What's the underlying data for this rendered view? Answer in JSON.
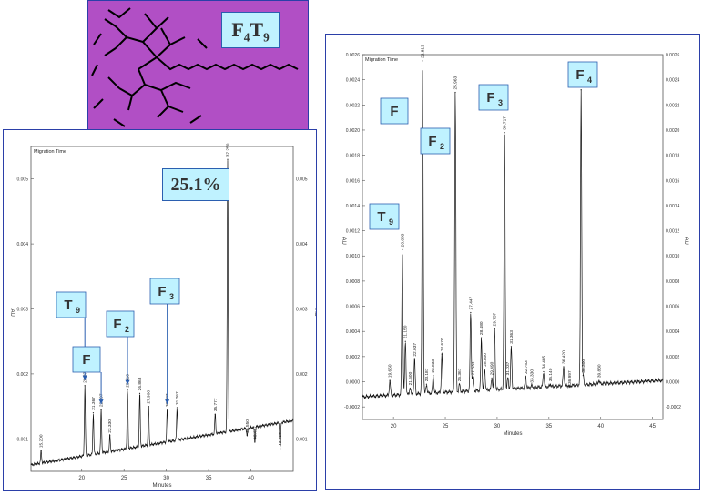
{
  "molecule": {
    "formula_main": "F",
    "formula_sub1": "4",
    "formula_mid": "T",
    "formula_sub2": "9"
  },
  "left_chart_tag": "25.1%",
  "colors": {
    "accent_box": "#bff2ff",
    "border": "#2b3fa8",
    "molecule_bg": "#b14fc5",
    "trace": "#111111"
  },
  "chart_data": [
    {
      "type": "line",
      "title": "Migration Time",
      "xlabel": "Minutes",
      "ylabel": "AU",
      "xlim": [
        14,
        45
      ],
      "ylim": [
        0.0005,
        0.0055
      ],
      "x_ticks": [
        "20",
        "25",
        "30",
        "35",
        "40"
      ],
      "y_ticks_left": [
        "0.001",
        "0.002",
        "0.003",
        "0.004",
        "0.005"
      ],
      "y_ticks_right": [
        "0.001",
        "0.002",
        "0.003",
        "0.004",
        "0.005"
      ],
      "peaks": [
        {
          "x": 15.2,
          "y": 0.00082,
          "label": "15.200"
        },
        {
          "x": 20.37,
          "y": 0.00182,
          "label": "20.370"
        },
        {
          "x": 21.367,
          "y": 0.0014,
          "label": "21.367"
        },
        {
          "x": 22.297,
          "y": 0.00145,
          "label": "22.297"
        },
        {
          "x": 23.33,
          "y": 0.00105,
          "label": "23.330"
        },
        {
          "x": 25.413,
          "y": 0.00175,
          "label": "25.413"
        },
        {
          "x": 26.863,
          "y": 0.0017,
          "label": "26.863"
        },
        {
          "x": 27.9,
          "y": 0.0015,
          "label": "27.900"
        },
        {
          "x": 30.107,
          "y": 0.00145,
          "label": "30.107"
        },
        {
          "x": 31.267,
          "y": 0.00148,
          "label": "31.267"
        },
        {
          "x": 35.777,
          "y": 0.00138,
          "label": "35.777"
        },
        {
          "x": 37.25,
          "y": 0.0053,
          "label": "37.250"
        },
        {
          "x": 39.55,
          "y": 0.00105,
          "label": "39.550"
        },
        {
          "x": 40.467,
          "y": 0.00095,
          "label": "40.467"
        },
        {
          "x": 43.457,
          "y": 0.00085,
          "label": "43.457"
        }
      ],
      "annotations": [
        {
          "main": "T",
          "sub": "9",
          "x": 20.37
        },
        {
          "main": "F",
          "sub": "",
          "x": 22.297
        },
        {
          "main": "F",
          "sub": "2",
          "x": 25.413
        },
        {
          "main": "F",
          "sub": "3",
          "x": 30.107
        }
      ]
    },
    {
      "type": "line",
      "title": "Migration Time",
      "xlabel": "Minutes",
      "ylabel": "AU",
      "xlim": [
        17,
        46
      ],
      "ylim": [
        -0.0003,
        0.0026
      ],
      "x_ticks": [
        "20",
        "25",
        "30",
        "35",
        "40",
        "45"
      ],
      "y_ticks_left": [
        "0.0026",
        "0.0024",
        "0.0022",
        "0.0020",
        "0.0018",
        "0.0016",
        "0.0014",
        "0.0012",
        "0.0010",
        "0.0008",
        "0.0006",
        "0.0004",
        "0.0002",
        "0.0000",
        "-0.0002"
      ],
      "y_ticks_right": [
        "0.0026",
        "0.0024",
        "0.0022",
        "0.0020",
        "0.0018",
        "0.0016",
        "0.0014",
        "0.0012",
        "0.0010",
        "0.0008",
        "0.0006",
        "0.0004",
        "0.0002",
        "0.0000",
        "-0.0002"
      ],
      "peaks": [
        {
          "x": 19.65,
          "y": 1e-05,
          "label": "19.650"
        },
        {
          "x": 20.853,
          "y": 0.00105,
          "label": "20.853"
        },
        {
          "x": 21.15,
          "y": 0.00032,
          "label": "21.150"
        },
        {
          "x": 21.6,
          "y": -5e-05,
          "label": "21.600"
        },
        {
          "x": 22.037,
          "y": 0.00018,
          "label": "22.037"
        },
        {
          "x": 22.813,
          "y": 0.00255,
          "label": "22.813"
        },
        {
          "x": 23.187,
          "y": -2e-05,
          "label": "23.187"
        },
        {
          "x": 23.833,
          "y": 5e-05,
          "label": "23.833"
        },
        {
          "x": 24.67,
          "y": 0.00022,
          "label": "24.670"
        },
        {
          "x": 25.963,
          "y": 0.0023,
          "label": "25.963"
        },
        {
          "x": 26.367,
          "y": -2e-05,
          "label": "26.367"
        },
        {
          "x": 27.447,
          "y": 0.00055,
          "label": "27.447"
        },
        {
          "x": 27.633,
          "y": 3e-05,
          "label": "27.633"
        },
        {
          "x": 28.48,
          "y": 0.00035,
          "label": "28.480"
        },
        {
          "x": 28.8,
          "y": 0.0001,
          "label": "28.800"
        },
        {
          "x": 29.49,
          "y": 3e-05,
          "label": "29.490"
        },
        {
          "x": 29.757,
          "y": 0.00042,
          "label": "29.757"
        },
        {
          "x": 30.717,
          "y": 0.00198,
          "label": "30.717"
        },
        {
          "x": 31.037,
          "y": 3e-05,
          "label": "31.037"
        },
        {
          "x": 31.363,
          "y": 0.00028,
          "label": "31.363"
        },
        {
          "x": 32.753,
          "y": 4e-05,
          "label": "32.753"
        },
        {
          "x": 33.33,
          "y": -3e-05,
          "label": "33.330"
        },
        {
          "x": 34.485,
          "y": 8e-05,
          "label": "34.485"
        },
        {
          "x": 35.14,
          "y": -2e-05,
          "label": "35.140"
        },
        {
          "x": 36.42,
          "y": 0.00012,
          "label": "36.420"
        },
        {
          "x": 36.997,
          "y": -4e-05,
          "label": "36.997"
        },
        {
          "x": 38.107,
          "y": 0.00232,
          "label": "38.107"
        },
        {
          "x": 38.3,
          "y": 5e-05,
          "label": "38.300"
        },
        {
          "x": 39.83,
          "y": 1e-05,
          "label": "39.830"
        }
      ],
      "annotations": [
        {
          "main": "T",
          "sub": "9",
          "x": 20.853
        },
        {
          "main": "F",
          "sub": "",
          "x": 22.813
        },
        {
          "main": "F",
          "sub": "2",
          "x": 25.963
        },
        {
          "main": "F",
          "sub": "3",
          "x": 30.717
        },
        {
          "main": "F",
          "sub": "4",
          "x": 38.107
        }
      ]
    }
  ]
}
